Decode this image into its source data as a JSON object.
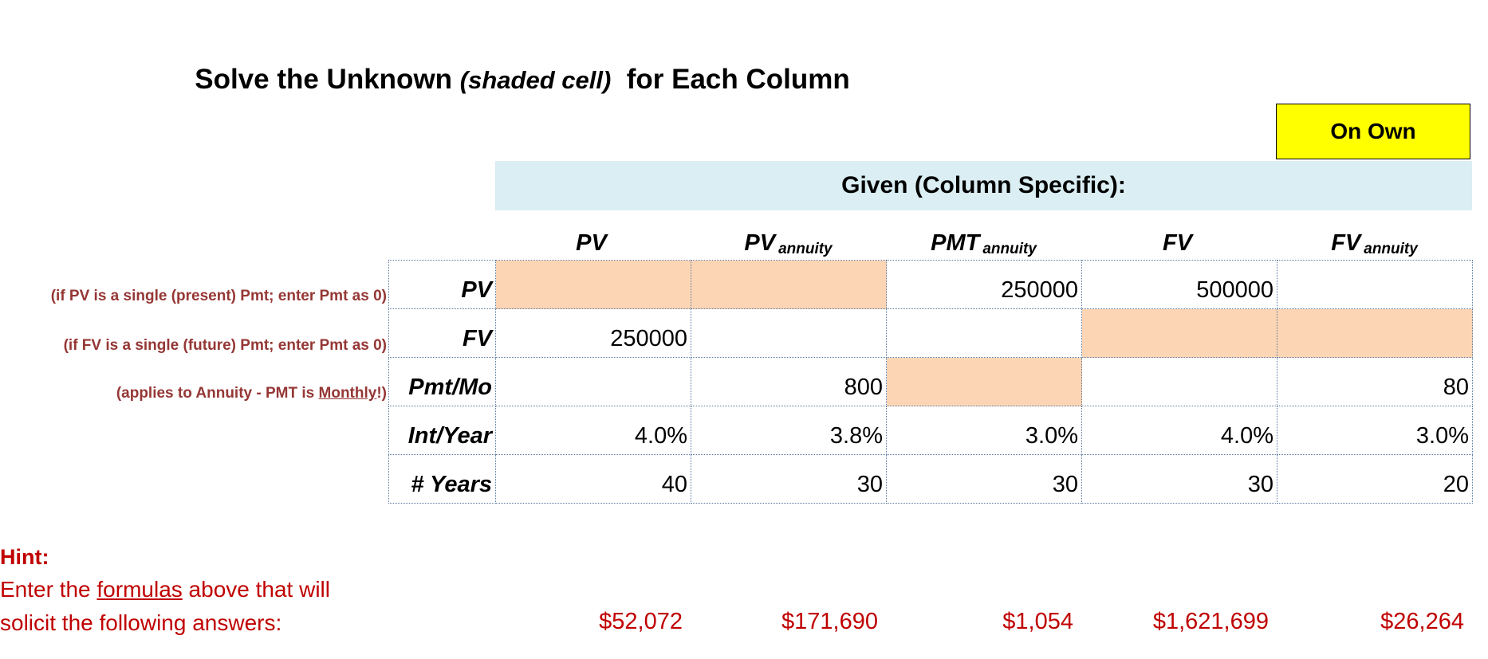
{
  "title": {
    "main": "Solve the Unknown ",
    "sub": "(shaded cell)",
    "tail": "for Each Column"
  },
  "badge": "On Own",
  "given_label": "Given (Column Specific):",
  "columns": [
    {
      "label": "PV",
      "sub": ""
    },
    {
      "label": "PV",
      "sub": "annuity"
    },
    {
      "label": "PMT",
      "sub": "annuity"
    },
    {
      "label": "FV",
      "sub": ""
    },
    {
      "label": "FV",
      "sub": "annuity"
    }
  ],
  "rows": [
    {
      "label": "PV",
      "cells": [
        "",
        "",
        "250000",
        "500000",
        ""
      ]
    },
    {
      "label": "FV",
      "cells": [
        "250000",
        "",
        "",
        "",
        ""
      ]
    },
    {
      "label": "Pmt/Mo",
      "cells": [
        "",
        "800",
        "",
        "",
        "80"
      ]
    },
    {
      "label": "Int/Year",
      "cells": [
        "4.0%",
        "3.8%",
        "3.0%",
        "4.0%",
        "3.0%"
      ]
    },
    {
      "label": "# Years",
      "cells": [
        "40",
        "30",
        "30",
        "30",
        "20"
      ]
    }
  ],
  "notes": {
    "pv": "(if PV is a single (present) Pmt; enter Pmt as 0)",
    "fv": "(if FV is a single (future) Pmt; enter Pmt as 0)",
    "pmt_pre": "(applies to Annuity - PMT is ",
    "pmt_u": "Monthly",
    "pmt_post": "!)"
  },
  "hint": {
    "title": "Hint:",
    "line1_pre": "Enter the ",
    "line1_u": "formulas",
    "line1_post": " above that will",
    "line2": "solicit the following answers:"
  },
  "answers": [
    "$52,072",
    "$171,690",
    "$1,054",
    "$1,621,699",
    "$26,264"
  ],
  "colors": {
    "shaded": "#fcd5b5",
    "badge": "#ffff00",
    "banner": "#daeef3",
    "hint": "#c00000",
    "note": "#953735"
  }
}
